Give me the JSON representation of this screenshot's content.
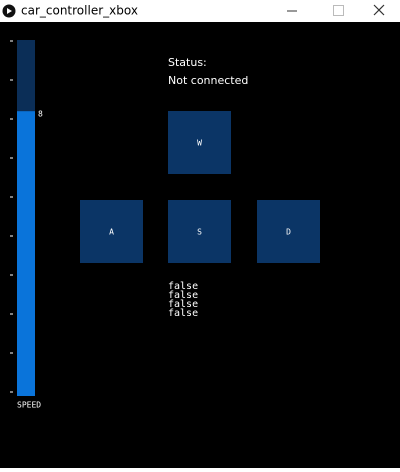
{
  "window": {
    "title": "car_controller_xbox"
  },
  "slider": {
    "label": "SPEED",
    "value": 8,
    "range": [
      0,
      10
    ]
  },
  "status": {
    "label": "Status:",
    "text": "Not connected"
  },
  "buttons": [
    {
      "label": "W"
    },
    {
      "label": "A"
    },
    {
      "label": "S"
    },
    {
      "label": "D"
    }
  ],
  "states": [
    "false",
    "false",
    "false",
    "false"
  ]
}
